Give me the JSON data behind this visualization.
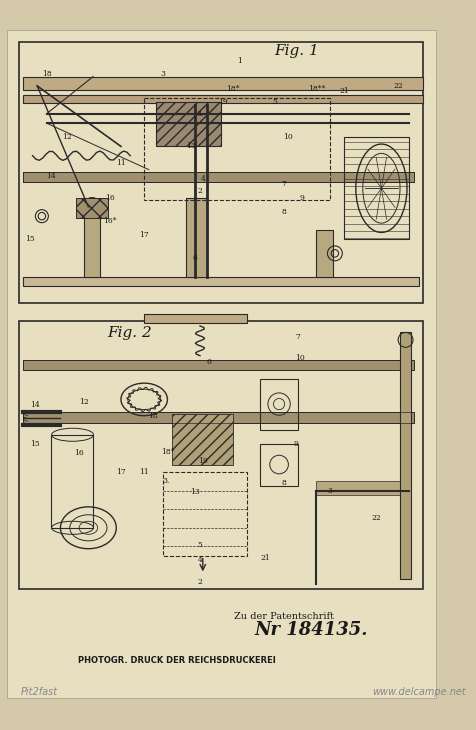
{
  "background_color": "#d4c9a8",
  "paper_color": "#e8dfc0",
  "border_color": "#333333",
  "text_color": "#1a1a1a",
  "line_color": "#2a2a2a",
  "fig1_label": "Fig. 1",
  "fig2_label": "Fig. 2",
  "patent_number_label": "Nr 184135.",
  "zu_der_label": "Zu der Patentschrift",
  "photogr_label": "PHOTOGR. DRUCK DER REICHSDRUCKEREI",
  "watermark1": "Pit2fast",
  "watermark2": "www.delcampe.net",
  "fig_width": 4.77,
  "fig_height": 7.3,
  "dpi": 100
}
